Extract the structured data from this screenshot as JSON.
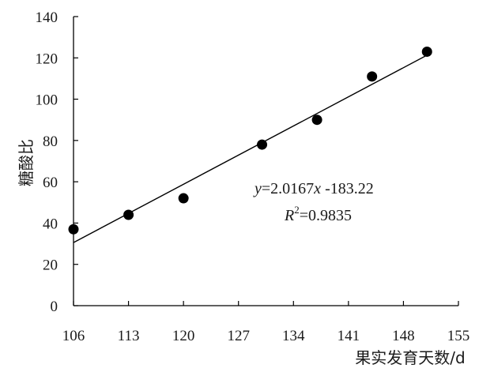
{
  "chart_data": {
    "type": "scatter",
    "xlabel": "果实发育天数/d",
    "ylabel": "糖酸比",
    "xlim": [
      106,
      155
    ],
    "ylim": [
      0,
      140
    ],
    "xticks": [
      106,
      113,
      120,
      127,
      134,
      141,
      148,
      155
    ],
    "yticks": [
      0,
      20,
      40,
      60,
      80,
      100,
      120,
      140
    ],
    "grid": false,
    "series": [
      {
        "x": [
          106,
          113,
          120,
          130,
          137,
          144,
          151
        ],
        "y": [
          37,
          44,
          52,
          78,
          90,
          111,
          123
        ]
      }
    ],
    "trendline": {
      "slope": 2.0167,
      "intercept": -183.22,
      "x_range": [
        106,
        151
      ],
      "equation_parts": {
        "y": "y",
        "mid": "=2.0167",
        "x": "x",
        "rest": " -183.22",
        "r": "R",
        "sup": "2",
        "r_rest": "=0.9835"
      }
    }
  }
}
